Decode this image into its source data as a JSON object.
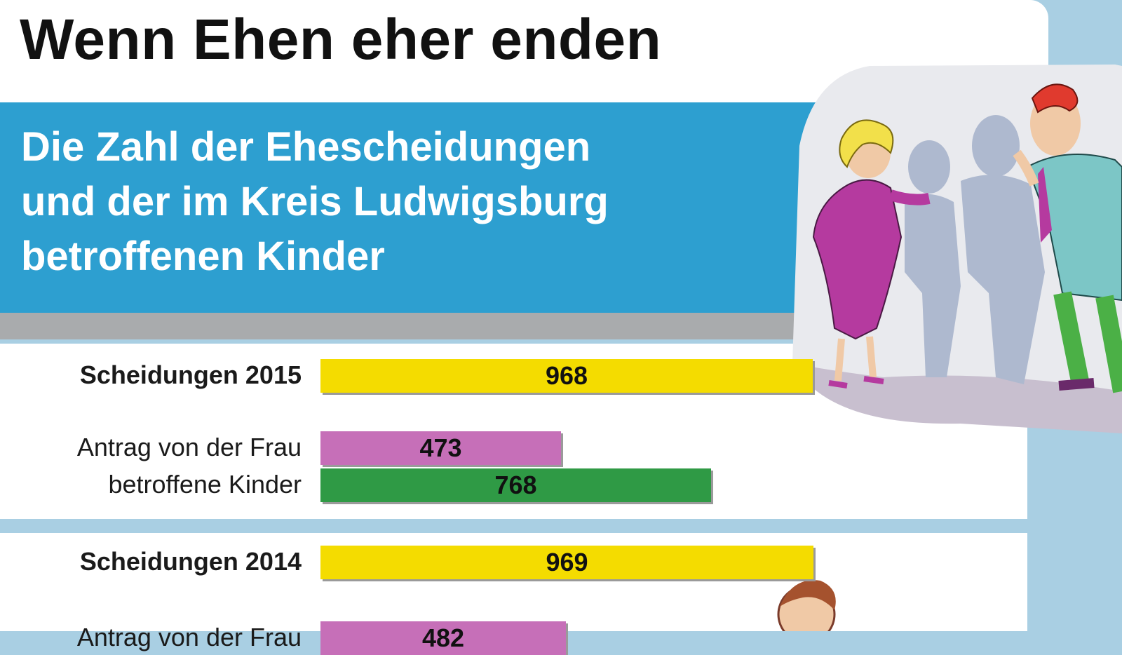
{
  "title": "Wenn Ehen eher enden",
  "subtitle_lines": [
    "Die Zahl der Ehescheidungen",
    "und der im Kreis Ludwigsburg",
    "betroffenen Kinder"
  ],
  "colors": {
    "band": "#2d9fd0",
    "scheidungen": "#f4dc00",
    "antrag_frau": "#c66fb8",
    "kinder": "#2f9a45"
  },
  "chart_data": {
    "type": "bar",
    "orientation": "horizontal",
    "title": "Wenn Ehen eher enden",
    "subtitle": "Die Zahl der Ehescheidungen und der im Kreis Ludwigsburg betroffenen Kinder",
    "groups": [
      {
        "year": "2015",
        "rows": [
          {
            "label": "Scheidungen 2015",
            "value": 968,
            "value_label": "968",
            "series": "scheidungen"
          },
          {
            "label": "Antrag von der Frau",
            "value": 473,
            "value_label": "473",
            "series": "antrag_frau"
          },
          {
            "label": "betroffene Kinder",
            "value": 768,
            "value_label": "768",
            "series": "kinder"
          }
        ]
      },
      {
        "year": "2014",
        "rows": [
          {
            "label": "Scheidungen 2014",
            "value": 969,
            "value_label": "969",
            "series": "scheidungen"
          },
          {
            "label": "Antrag von der Frau",
            "value": 482,
            "value_label": "482",
            "series": "antrag_frau"
          }
        ]
      }
    ],
    "xlim": [
      0,
      969
    ],
    "grid": false,
    "legend": "none"
  },
  "illustrations": [
    "arguing-couple-illustration",
    "upset-child-illustration"
  ]
}
